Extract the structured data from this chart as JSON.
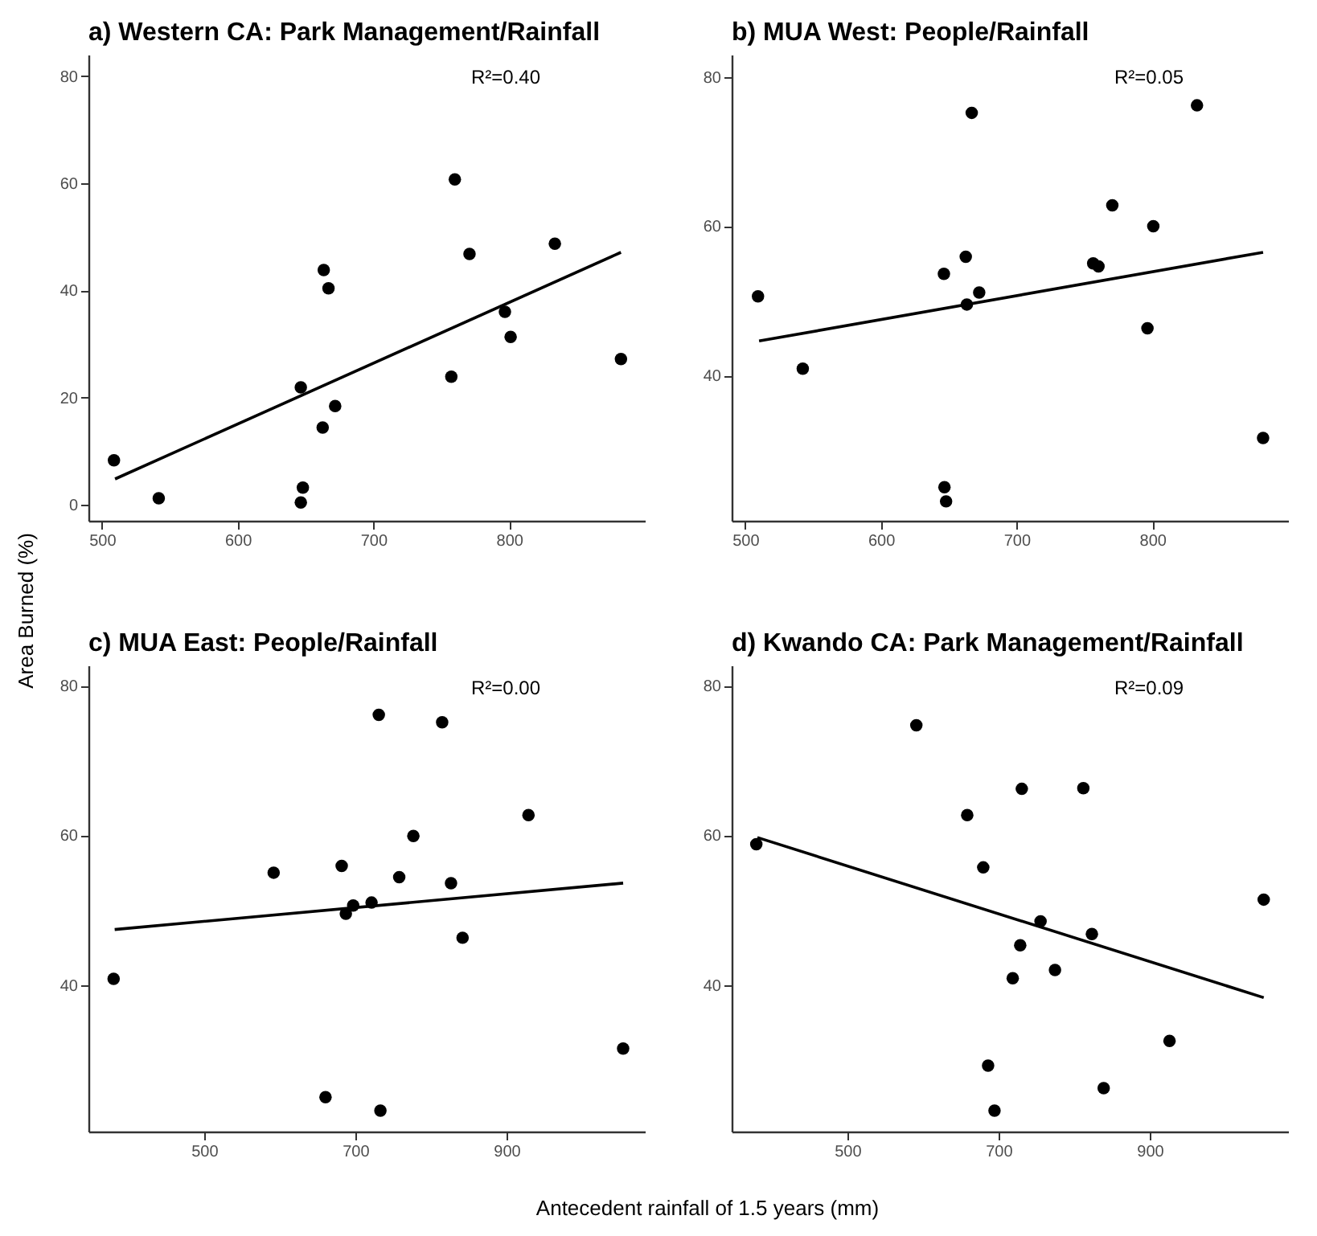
{
  "chart_data": [
    {
      "type": "scatter",
      "title": "a) Western CA: Park Management/Rainfall",
      "ylabel": "Area Burned (%)",
      "annotations": [
        "R²=0.40"
      ],
      "xlim": [
        490,
        900
      ],
      "xticks": [
        500,
        600,
        700,
        800
      ],
      "ylim": [
        -3,
        84
      ],
      "yticks": [
        0,
        20,
        40,
        60,
        80
      ],
      "series": [
        {
          "color": "#000000",
          "marker": "circle",
          "x": [
            508.8,
            541.8,
            646.5,
            648,
            646.5,
            663.4,
            666.9,
            662.6,
            671.8,
            760,
            770.8,
            757.4,
            796.9,
            801.1,
            833.7,
            882.4
          ],
          "values": [
            8.3,
            1.2,
            21.9,
            3.2,
            0.4,
            43.8,
            40.4,
            14.4,
            18.4,
            60.7,
            46.8,
            23.9,
            36.0,
            31.3,
            48.7,
            27.2
          ]
        },
        {
          "type": "line",
          "color": "#000000",
          "x": [
            509.6,
            882.4
          ],
          "values": [
            4.8,
            47.1
          ]
        }
      ]
    },
    {
      "type": "scatter",
      "title": "b) MUA West: People/Rainfall",
      "annotations": [
        "R²=0.05"
      ],
      "xlim": [
        490,
        900
      ],
      "xticks": [
        500,
        600,
        700,
        800
      ],
      "ylim": [
        20.5,
        83
      ],
      "yticks": [
        40,
        60,
        80
      ],
      "series": [
        {
          "color": "#000000",
          "marker": "circle",
          "x": [
            509.4,
            542.4,
            646.4,
            662.5,
            666.9,
            663.3,
            672.4,
            646.8,
            648,
            756.4,
            760.3,
            770.5,
            800.7,
            796.4,
            832.9,
            881.6
          ],
          "values": [
            50.6,
            40.9,
            53.6,
            55.9,
            75.2,
            49.5,
            51.1,
            25.0,
            23.1,
            55.0,
            54.6,
            62.8,
            60.0,
            46.3,
            76.2,
            31.6
          ]
        },
        {
          "type": "line",
          "color": "#000000",
          "x": [
            510.2,
            881.6
          ],
          "values": [
            44.6,
            56.5
          ]
        }
      ]
    },
    {
      "type": "scatter",
      "title": "c) MUA East: People/Rainfall",
      "xlabel": "Antecedent rainfall of 1.5 years (mm)",
      "annotations": [
        "R²=0.00"
      ],
      "xlim": [
        347,
        1083
      ],
      "xticks": [
        500,
        700,
        900
      ],
      "ylim": [
        20.4,
        82.7
      ],
      "yticks": [
        40,
        60,
        80
      ],
      "series": [
        {
          "color": "#000000",
          "marker": "circle",
          "x": [
            380.3,
            592,
            682,
            731.1,
            814.9,
            929.1,
            776.8,
            758.1,
            826.6,
            697.2,
            687.5,
            721.5,
            841.9,
            660.6,
            733.2,
            1054.3
          ],
          "values": [
            40.8,
            55.0,
            55.9,
            76.1,
            75.1,
            62.7,
            59.9,
            54.4,
            53.6,
            50.6,
            49.5,
            51.0,
            46.3,
            25.0,
            23.2,
            31.5
          ]
        },
        {
          "type": "line",
          "color": "#000000",
          "x": [
            381.7,
            1054.3
          ],
          "values": [
            47.4,
            53.6
          ]
        }
      ]
    },
    {
      "type": "scatter",
      "title": "d) Kwando CA: Park Management/Rainfall",
      "annotations": [
        "R²=0.09"
      ],
      "xlim": [
        347,
        1083
      ],
      "xticks": [
        500,
        700,
        900
      ],
      "ylim": [
        20.4,
        82.7
      ],
      "yticks": [
        40,
        60,
        80
      ],
      "series": [
        {
          "color": "#000000",
          "marker": "circle",
          "x": [
            379.6,
            591.3,
            658.6,
            730.8,
            812.2,
            679.8,
            755.6,
            823.5,
            728.7,
            718.8,
            774.7,
            1050.8,
            926.2,
            686.2,
            839.1,
            694.7
          ],
          "values": [
            58.8,
            74.7,
            62.7,
            66.2,
            66.3,
            55.7,
            48.5,
            46.8,
            45.3,
            40.9,
            42.0,
            51.4,
            32.5,
            29.2,
            26.2,
            23.2
          ]
        },
        {
          "type": "line",
          "color": "#000000",
          "x": [
            381,
            1050.8
          ],
          "values": [
            59.7,
            38.3
          ]
        }
      ]
    }
  ]
}
